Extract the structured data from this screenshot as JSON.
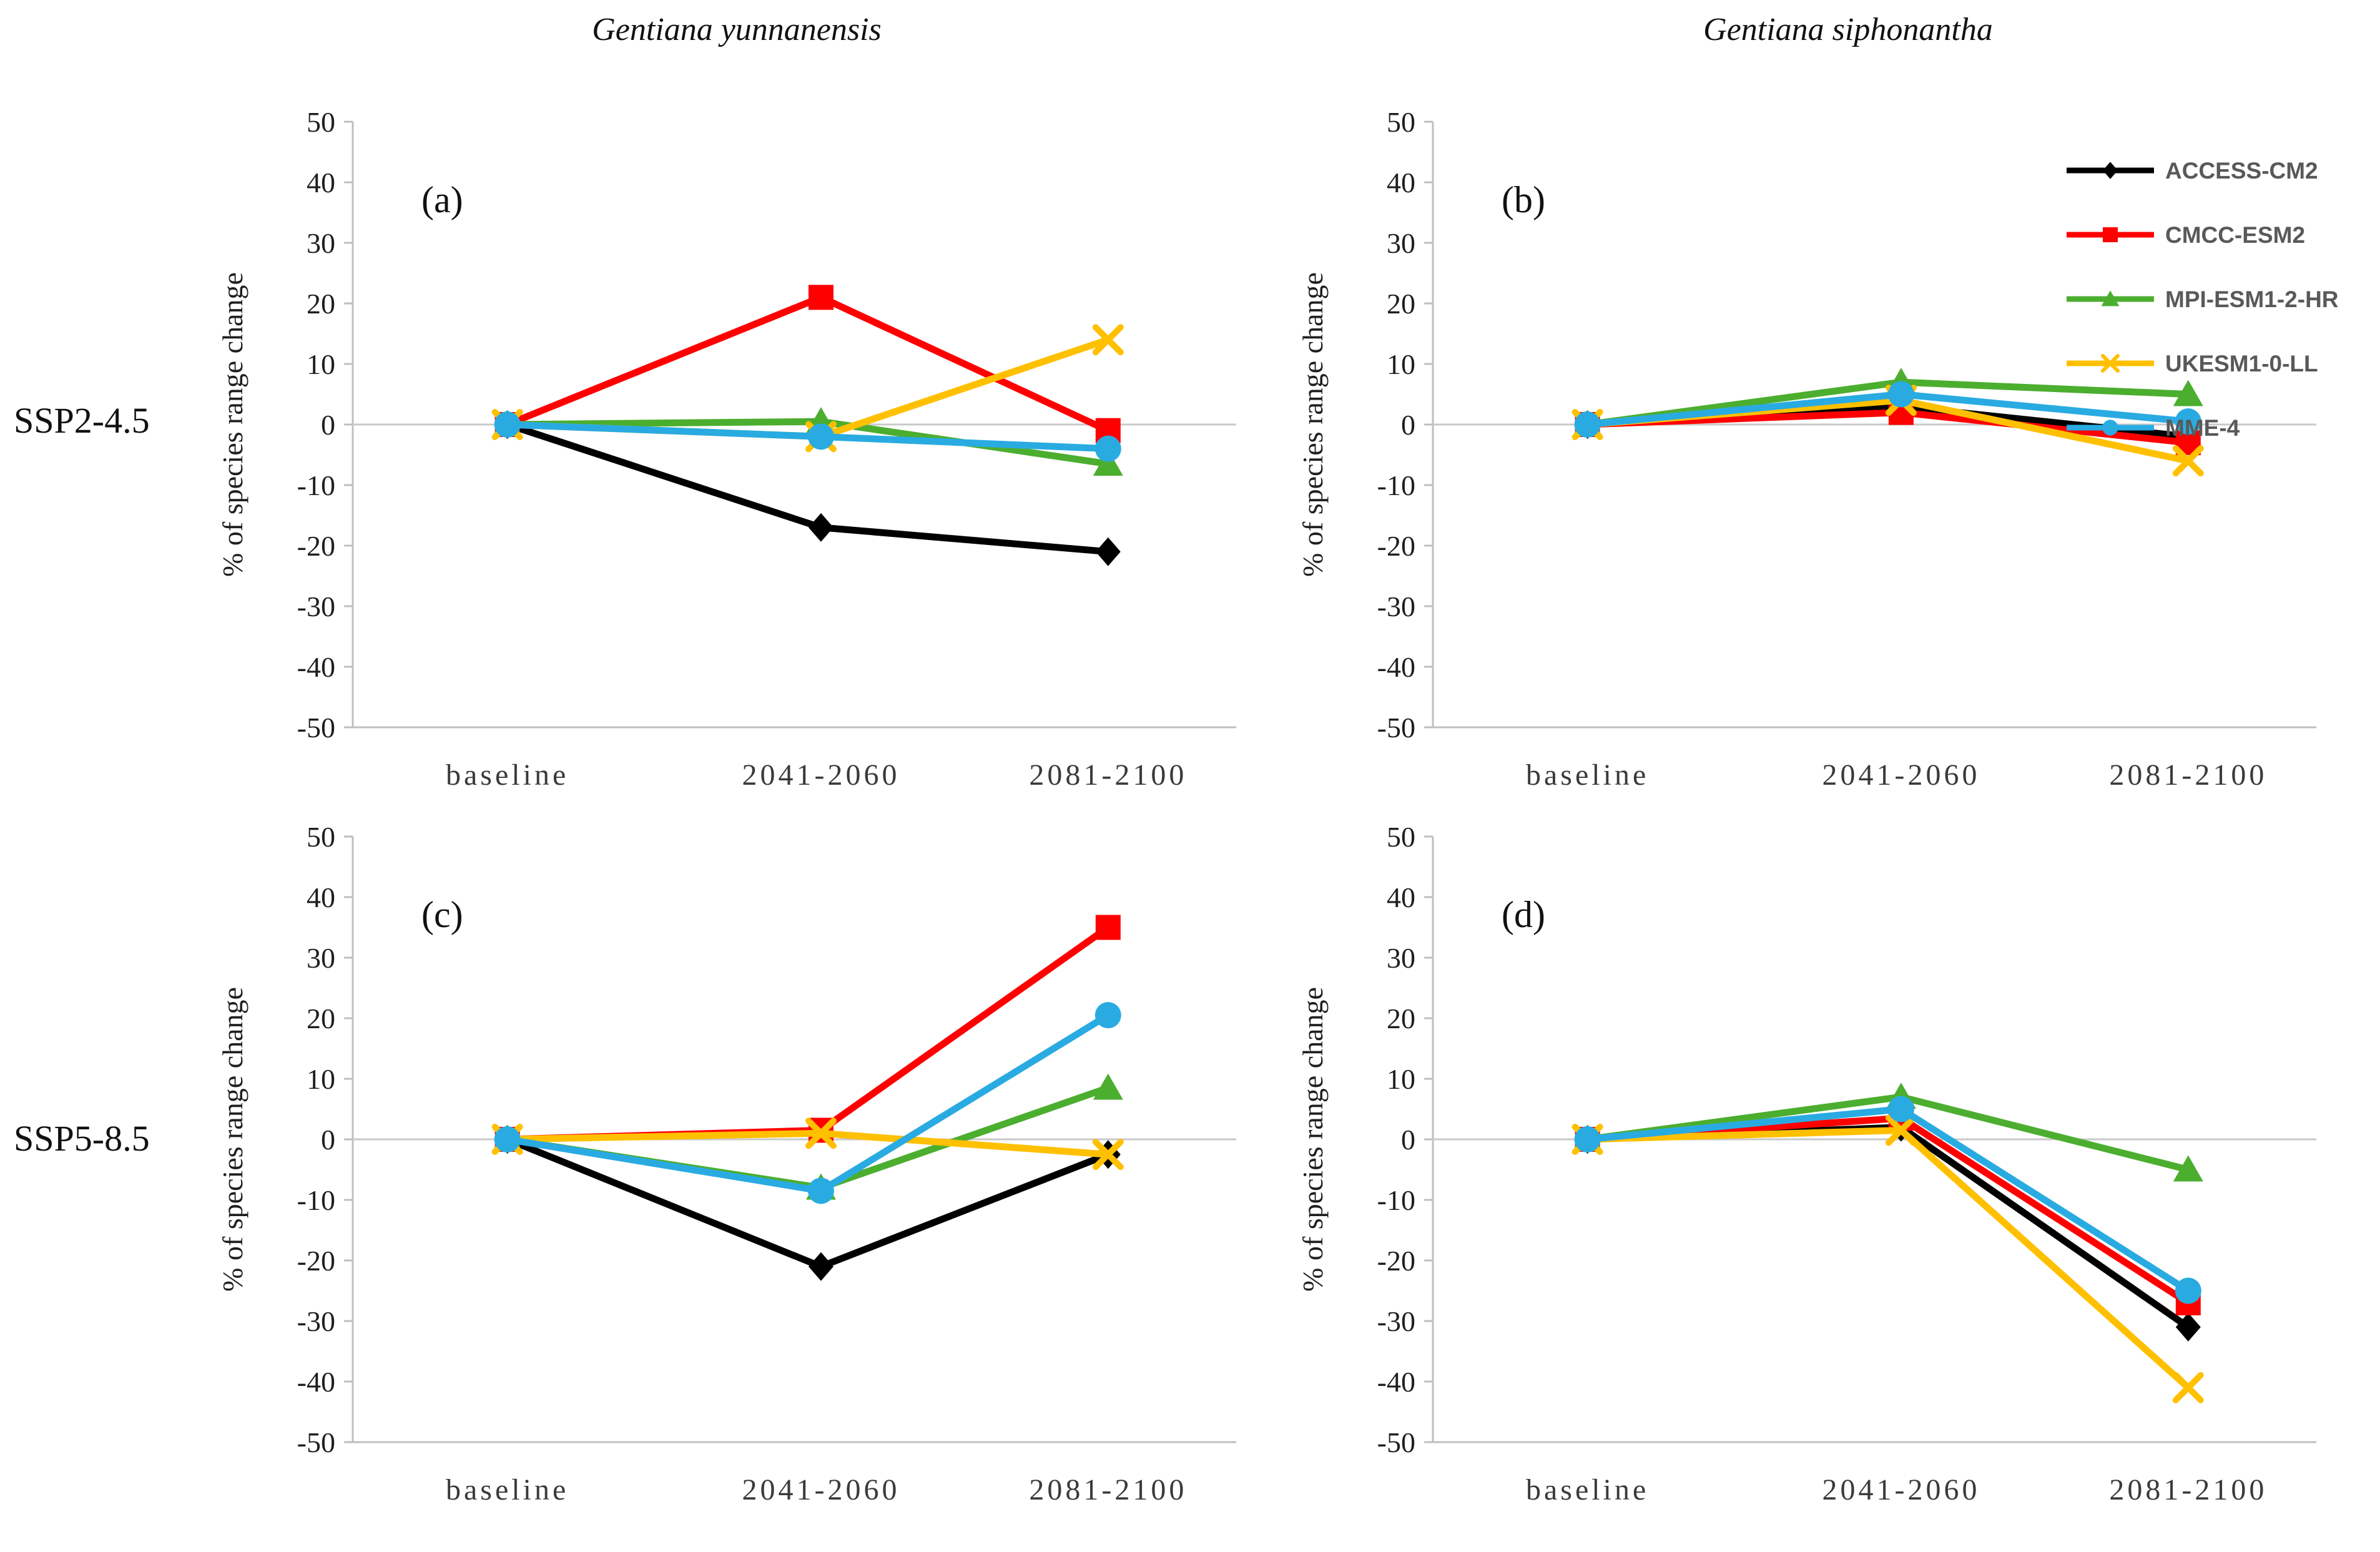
{
  "columns": [
    {
      "title": "Gentiana yunnanensis"
    },
    {
      "title": "Gentiana siphonantha"
    }
  ],
  "rows": [
    {
      "label": "SSP2-4.5"
    },
    {
      "label": "SSP5-8.5"
    }
  ],
  "colors": {
    "access_cm2": "#000000",
    "cmcc_esm2": "#FF0000",
    "mpi_esm1_2_hr": "#4CAE2F",
    "ukesm1_0_ll": "#FFC000",
    "mme4": "#29ABE2",
    "axis_line": "#BFBFBF",
    "zero_gridline": "#C9C9C9",
    "tick_text": "#1f1f1f",
    "category_text": "#3a3a3a",
    "legend_text": "#595959"
  },
  "models": [
    {
      "name": "ACCESS-CM2",
      "color": "#000000",
      "marker": "diamond"
    },
    {
      "name": "CMCC-ESM2",
      "color": "#FF0000",
      "marker": "square"
    },
    {
      "name": "MPI-ESM1-2-HR",
      "color": "#4CAE2F",
      "marker": "triangle"
    },
    {
      "name": "UKESM1-0-LL",
      "color": "#FFC000",
      "marker": "x"
    },
    {
      "name": "MME-4",
      "color": "#29ABE2",
      "marker": "circle"
    }
  ],
  "chart_data": [
    {
      "id": "a",
      "type": "line",
      "panel_letter": "(a)",
      "species": "Gentiana yunnanensis",
      "scenario": "SSP2-4.5",
      "categories": [
        "baseline",
        "2041-2060",
        "2081-2100"
      ],
      "ylabel": "% of species range change",
      "ylim": [
        -50,
        50
      ],
      "ytick_step": 10,
      "grid": "zero-line-only",
      "legend": false,
      "series": [
        {
          "name": "ACCESS-CM2",
          "values": [
            0,
            -17,
            -21
          ]
        },
        {
          "name": "CMCC-ESM2",
          "values": [
            0,
            21,
            -1
          ]
        },
        {
          "name": "MPI-ESM1-2-HR",
          "values": [
            0,
            0.5,
            -6.5
          ]
        },
        {
          "name": "UKESM1-0-LL",
          "values": [
            0,
            -2,
            14
          ]
        },
        {
          "name": "MME-4",
          "values": [
            0,
            -2,
            -4
          ]
        }
      ]
    },
    {
      "id": "b",
      "type": "line",
      "panel_letter": "(b)",
      "species": "Gentiana siphonantha",
      "scenario": "SSP2-4.5",
      "categories": [
        "baseline",
        "2041-2060",
        "2081-2100"
      ],
      "ylabel": "% of species range change",
      "ylim": [
        -50,
        50
      ],
      "ytick_step": 10,
      "grid": "zero-line-only",
      "legend": true,
      "legend_position": "top-right",
      "series": [
        {
          "name": "ACCESS-CM2",
          "values": [
            0,
            3,
            -2
          ]
        },
        {
          "name": "CMCC-ESM2",
          "values": [
            0,
            2,
            -3
          ]
        },
        {
          "name": "MPI-ESM1-2-HR",
          "values": [
            0,
            7,
            5
          ]
        },
        {
          "name": "UKESM1-0-LL",
          "values": [
            0,
            4,
            -6
          ]
        },
        {
          "name": "MME-4",
          "values": [
            0,
            5,
            0.5
          ]
        }
      ]
    },
    {
      "id": "c",
      "type": "line",
      "panel_letter": "(c)",
      "species": "Gentiana yunnanensis",
      "scenario": "SSP5-8.5",
      "categories": [
        "baseline",
        "2041-2060",
        "2081-2100"
      ],
      "ylabel": "% of species range change",
      "ylim": [
        -50,
        50
      ],
      "ytick_step": 10,
      "grid": "zero-line-only",
      "legend": false,
      "series": [
        {
          "name": "ACCESS-CM2",
          "values": [
            0,
            -21,
            -2.5
          ]
        },
        {
          "name": "CMCC-ESM2",
          "values": [
            0,
            1.5,
            35
          ]
        },
        {
          "name": "MPI-ESM1-2-HR",
          "values": [
            0,
            -8,
            8.5
          ]
        },
        {
          "name": "UKESM1-0-LL",
          "values": [
            0,
            1,
            -2.5
          ]
        },
        {
          "name": "MME-4",
          "values": [
            0,
            -8.5,
            20.5
          ]
        }
      ]
    },
    {
      "id": "d",
      "type": "line",
      "panel_letter": "(d)",
      "species": "Gentiana siphonantha",
      "scenario": "SSP5-8.5",
      "categories": [
        "baseline",
        "2041-2060",
        "2081-2100"
      ],
      "ylabel": "% of species range change",
      "ylim": [
        -50,
        50
      ],
      "ytick_step": 10,
      "grid": "zero-line-only",
      "legend": false,
      "series": [
        {
          "name": "ACCESS-CM2",
          "values": [
            0,
            2,
            -31
          ]
        },
        {
          "name": "CMCC-ESM2",
          "values": [
            0,
            3.5,
            -27
          ]
        },
        {
          "name": "MPI-ESM1-2-HR",
          "values": [
            0,
            7,
            -5
          ]
        },
        {
          "name": "UKESM1-0-LL",
          "values": [
            0,
            1.5,
            -41
          ]
        },
        {
          "name": "MME-4",
          "values": [
            0,
            5,
            -25
          ]
        }
      ]
    }
  ]
}
